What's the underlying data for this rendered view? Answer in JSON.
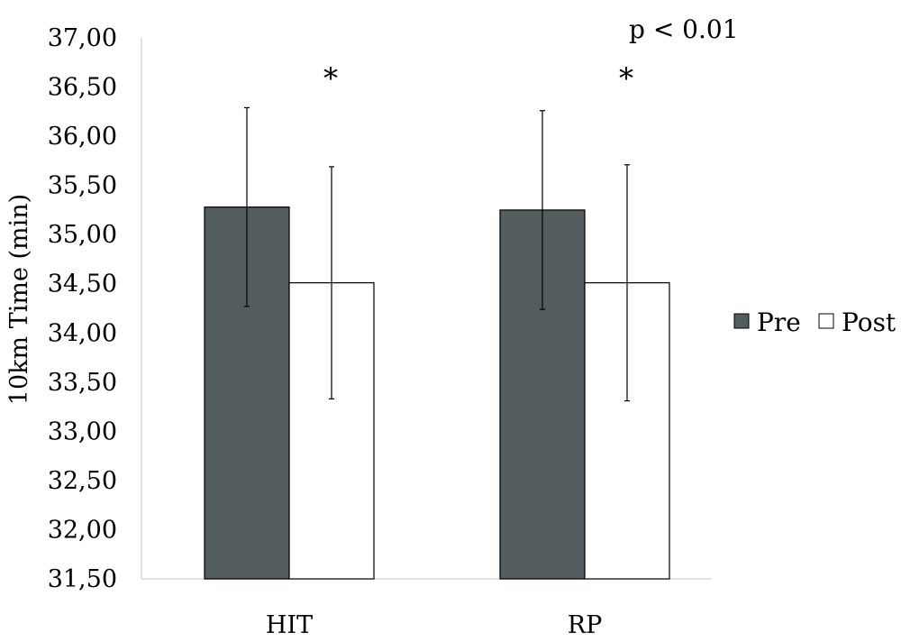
{
  "chart_data": {
    "type": "bar",
    "categories": [
      "HIT",
      "RP"
    ],
    "series": [
      {
        "name": "Pre",
        "values": [
          35.28,
          35.25
        ],
        "error": [
          1.01,
          1.01
        ],
        "color": "#535d5f"
      },
      {
        "name": "Post",
        "values": [
          34.51,
          34.51
        ],
        "error": [
          1.18,
          1.2
        ],
        "color": "#ffffff"
      }
    ],
    "xlabel": "",
    "ylabel": "10km Time (min)",
    "ylim": [
      31.5,
      37.0
    ],
    "ytick_step": 0.5,
    "ytick_labels": [
      "31,50",
      "32,00",
      "32,50",
      "33,00",
      "33,50",
      "34,00",
      "34,50",
      "35,00",
      "35,50",
      "36,00",
      "36,50",
      "37,00"
    ],
    "annotation": "p < 0.01",
    "significance_markers": [
      "*",
      "*"
    ],
    "legend_position": "right",
    "grid": false
  }
}
